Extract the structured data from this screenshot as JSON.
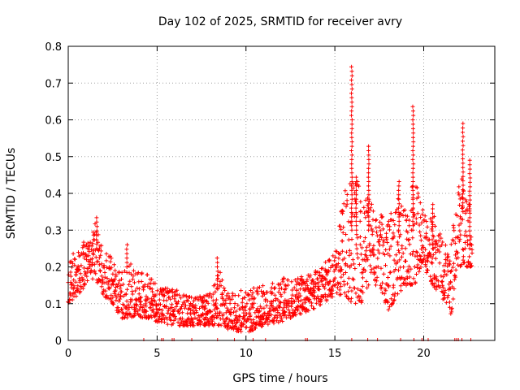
{
  "chart_data": {
    "type": "scatter",
    "title": "Day 102 of 2025, SRMTID for receiver avry",
    "xlabel": "GPS time / hours",
    "ylabel": "SRMTID / TECUs",
    "xlim": [
      0,
      24
    ],
    "ylim": [
      0,
      0.8
    ],
    "xticks": [
      0,
      5,
      10,
      15,
      20
    ],
    "xtick_labels": [
      "0",
      "5",
      "10",
      "15",
      "20"
    ],
    "yticks": [
      0,
      0.1,
      0.2,
      0.3,
      0.4,
      0.5,
      0.6,
      0.7,
      0.8
    ],
    "ytick_labels": [
      "0",
      "0.1",
      "0.2",
      "0.3",
      "0.4",
      "0.5",
      "0.6",
      "0.7",
      "0.8"
    ],
    "grid": true,
    "marker": "+",
    "color": "#ff0000",
    "envelope": [
      {
        "x": 0.0,
        "low": 0.1,
        "high": 0.22
      },
      {
        "x": 0.5,
        "low": 0.12,
        "high": 0.26
      },
      {
        "x": 1.0,
        "low": 0.15,
        "high": 0.27
      },
      {
        "x": 1.5,
        "low": 0.17,
        "high": 0.32
      },
      {
        "x": 2.0,
        "low": 0.12,
        "high": 0.25
      },
      {
        "x": 2.5,
        "low": 0.1,
        "high": 0.22
      },
      {
        "x": 3.0,
        "low": 0.06,
        "high": 0.2
      },
      {
        "x": 3.5,
        "low": 0.06,
        "high": 0.21
      },
      {
        "x": 4.0,
        "low": 0.06,
        "high": 0.19
      },
      {
        "x": 4.5,
        "low": 0.06,
        "high": 0.18
      },
      {
        "x": 5.0,
        "low": 0.05,
        "high": 0.15
      },
      {
        "x": 6.0,
        "low": 0.04,
        "high": 0.14
      },
      {
        "x": 7.0,
        "low": 0.04,
        "high": 0.12
      },
      {
        "x": 8.0,
        "low": 0.04,
        "high": 0.13
      },
      {
        "x": 8.5,
        "low": 0.04,
        "high": 0.2
      },
      {
        "x": 9.0,
        "low": 0.03,
        "high": 0.13
      },
      {
        "x": 10.0,
        "low": 0.02,
        "high": 0.14
      },
      {
        "x": 11.0,
        "low": 0.04,
        "high": 0.15
      },
      {
        "x": 12.0,
        "low": 0.05,
        "high": 0.17
      },
      {
        "x": 13.0,
        "low": 0.07,
        "high": 0.18
      },
      {
        "x": 14.0,
        "low": 0.09,
        "high": 0.19
      },
      {
        "x": 15.0,
        "low": 0.12,
        "high": 0.24
      },
      {
        "x": 15.5,
        "low": 0.12,
        "high": 0.4
      },
      {
        "x": 16.0,
        "low": 0.1,
        "high": 0.45
      },
      {
        "x": 16.5,
        "low": 0.1,
        "high": 0.42
      },
      {
        "x": 17.0,
        "low": 0.15,
        "high": 0.38
      },
      {
        "x": 17.5,
        "low": 0.15,
        "high": 0.35
      },
      {
        "x": 18.0,
        "low": 0.08,
        "high": 0.32
      },
      {
        "x": 18.5,
        "low": 0.12,
        "high": 0.42
      },
      {
        "x": 19.0,
        "low": 0.15,
        "high": 0.35
      },
      {
        "x": 19.5,
        "low": 0.15,
        "high": 0.45
      },
      {
        "x": 20.0,
        "low": 0.2,
        "high": 0.35
      },
      {
        "x": 20.5,
        "low": 0.15,
        "high": 0.35
      },
      {
        "x": 21.0,
        "low": 0.12,
        "high": 0.28
      },
      {
        "x": 21.5,
        "low": 0.06,
        "high": 0.25
      },
      {
        "x": 22.0,
        "low": 0.2,
        "high": 0.45
      },
      {
        "x": 22.5,
        "low": 0.2,
        "high": 0.45
      },
      {
        "x": 22.7,
        "low": 0.2,
        "high": 0.3
      }
    ],
    "spikes": [
      {
        "x": 1.6,
        "from": 0.25,
        "to": 0.34
      },
      {
        "x": 3.3,
        "from": 0.2,
        "to": 0.27
      },
      {
        "x": 8.4,
        "from": 0.14,
        "to": 0.23
      },
      {
        "x": 15.95,
        "from": 0.3,
        "to": 0.75
      },
      {
        "x": 16.2,
        "from": 0.3,
        "to": 0.45
      },
      {
        "x": 16.9,
        "from": 0.3,
        "to": 0.54
      },
      {
        "x": 18.6,
        "from": 0.3,
        "to": 0.44
      },
      {
        "x": 19.4,
        "from": 0.3,
        "to": 0.64
      },
      {
        "x": 20.5,
        "from": 0.25,
        "to": 0.38
      },
      {
        "x": 22.2,
        "from": 0.35,
        "to": 0.6
      },
      {
        "x": 22.6,
        "from": 0.25,
        "to": 0.5
      }
    ],
    "zero_markers_x": [
      4.25,
      5.25,
      5.35,
      5.85,
      5.95,
      6.95,
      8.4,
      9.35,
      10.4,
      11.1,
      13.35,
      13.45,
      15.95,
      16.85,
      17.4,
      18.7,
      19.45,
      19.9,
      20.0,
      20.25,
      21.75,
      21.85,
      21.95,
      22.15,
      22.65
    ]
  }
}
